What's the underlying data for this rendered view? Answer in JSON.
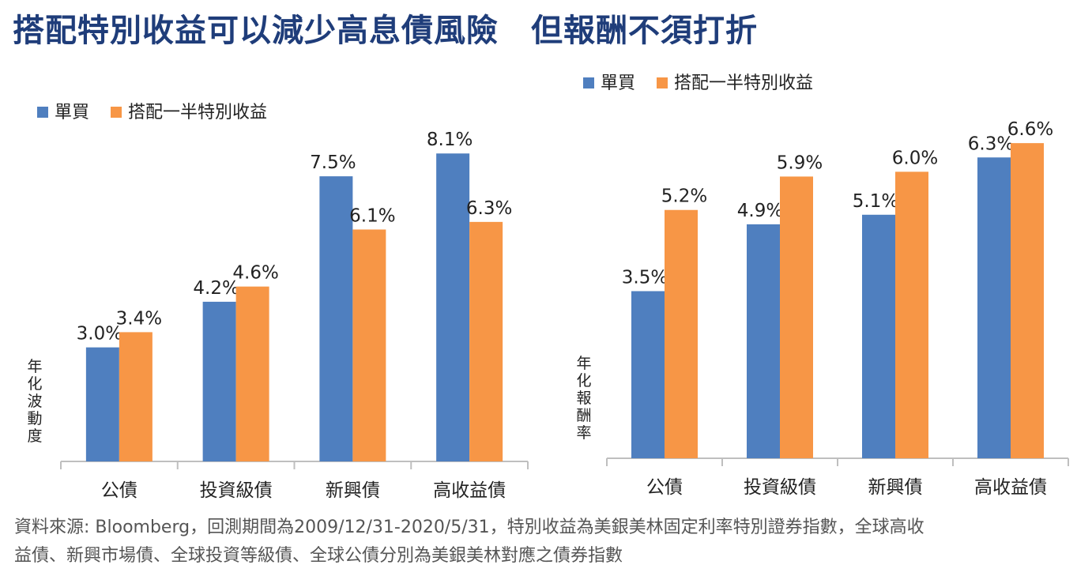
{
  "title": "搭配特別收益可以減少高息債風險　但報酬不須打折",
  "colors": {
    "series1": "#4f7fbf",
    "series2": "#f79646",
    "axis": "#bfbfbf",
    "title": "#1f3d7a"
  },
  "chart_data": [
    {
      "type": "bar",
      "title": "",
      "ylabel": "年化波動度",
      "xlabel": "",
      "legend_position": "top-left",
      "categories": [
        "公債",
        "投資級債",
        "新興債",
        "高收益債"
      ],
      "series": [
        {
          "name": "單買",
          "values": [
            3.0,
            4.2,
            7.5,
            8.1
          ],
          "labels": [
            "3.0%",
            "4.2%",
            "7.5%",
            "8.1%"
          ]
        },
        {
          "name": "搭配一半特別收益",
          "values": [
            3.4,
            4.6,
            6.1,
            6.3
          ],
          "labels": [
            "3.4%",
            "4.6%",
            "6.1%",
            "6.3%"
          ]
        }
      ],
      "ylim": [
        0,
        8.5
      ]
    },
    {
      "type": "bar",
      "title": "",
      "ylabel": "年化報酬率",
      "xlabel": "",
      "legend_position": "top-left",
      "categories": [
        "公債",
        "投資級債",
        "新興債",
        "高收益債"
      ],
      "series": [
        {
          "name": "單買",
          "values": [
            3.5,
            4.9,
            5.1,
            6.3
          ],
          "labels": [
            "3.5%",
            "4.9%",
            "5.1%",
            "6.3%"
          ]
        },
        {
          "name": "搭配一半特別收益",
          "values": [
            5.2,
            5.9,
            6.0,
            6.6
          ],
          "labels": [
            "5.2%",
            "5.9%",
            "6.0%",
            "6.6%"
          ]
        }
      ],
      "ylim": [
        0,
        6.9
      ]
    }
  ],
  "source": {
    "line1": "資料來源: Bloomberg，回測期間為2009/12/31-2020/5/31，特別收益為美銀美林固定利率特別證券指數，全球高收",
    "line2": "益債、新興市場債、全球投資等級債、全球公債分別為美銀美林對應之債券指數"
  }
}
